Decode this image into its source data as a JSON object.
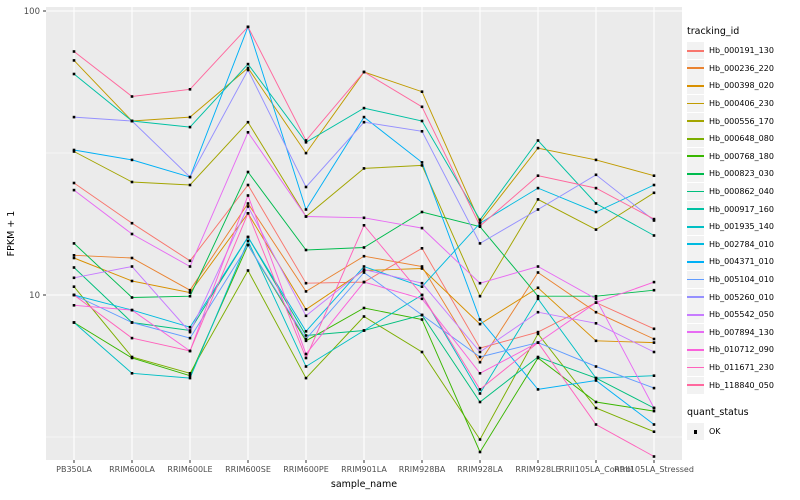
{
  "figure": {
    "kind": "ggplot-line-chart",
    "panel_bg": "#EBEBEB",
    "grid_color": "#FFFFFF",
    "tick_text_color": "#4D4D4D",
    "axis_title_color": "#000000",
    "legend_key_bg": "#F2F2F2",
    "point_color": "#000000"
  },
  "axes": {
    "y_label": "FPKM + 1",
    "x_label": "sample_name",
    "y_ticks": [
      "100",
      "10"
    ],
    "y_minor_gridlines": [
      31.62,
      3.162
    ],
    "y_major_gridlines": [
      100,
      10
    ]
  },
  "legend": {
    "color_title": "tracking_id",
    "shape_title": "quant_status",
    "shape_items": [
      {
        "label": "OK",
        "shape": "filled-square",
        "color": "#000000"
      }
    ]
  },
  "chart_data": {
    "type": "line",
    "title": "",
    "xlabel": "sample_name",
    "ylabel": "FPKM + 1",
    "yscale": "log10",
    "ylim": [
      2.6,
      101
    ],
    "grid": true,
    "legend_position": "right",
    "point_shape": "filled-square",
    "point_color": "#000000",
    "quant_status": "OK",
    "x": [
      "PB350LA",
      "RRIM600LA",
      "RRIM600LE",
      "RRIM600SE",
      "RRIM600PE",
      "RRIM901LA",
      "RRIM928BA",
      "RRIM928LA",
      "RRIM928LE",
      "RRII105LA_Control",
      "RRII105LA_Stressed"
    ],
    "series": [
      {
        "name": "Hb_000191_130",
        "color": "#F8766D",
        "values": [
          24.8,
          17.9,
          13.2,
          24.4,
          11.0,
          11.1,
          14.6,
          6.5,
          7.4,
          9.4,
          7.6
        ]
      },
      {
        "name": "Hb_000236_220",
        "color": "#EA8331",
        "values": [
          13.8,
          13.5,
          10.4,
          21.0,
          10.3,
          13.7,
          12.6,
          5.8,
          12.0,
          8.7,
          7.0
        ]
      },
      {
        "name": "Hb_000398_020",
        "color": "#D89000",
        "values": [
          13.5,
          11.2,
          10.2,
          19.4,
          8.9,
          12.2,
          12.4,
          7.9,
          10.6,
          6.9,
          6.8
        ]
      },
      {
        "name": "Hb_000406_230",
        "color": "#C09B00",
        "values": [
          67.0,
          41.0,
          42.3,
          63.0,
          31.6,
          61.0,
          52.0,
          18.0,
          32.9,
          29.9,
          26.3
        ]
      },
      {
        "name": "Hb_000556_170",
        "color": "#A3A500",
        "values": [
          32.0,
          25.0,
          24.4,
          40.6,
          18.9,
          27.9,
          28.6,
          9.9,
          21.7,
          17.0,
          22.9
        ]
      },
      {
        "name": "Hb_000648_080",
        "color": "#7CAE00",
        "values": [
          10.7,
          6.05,
          5.3,
          12.2,
          5.1,
          8.4,
          6.3,
          3.1,
          7.3,
          4.0,
          3.3
        ]
      },
      {
        "name": "Hb_000768_180",
        "color": "#39B600",
        "values": [
          8.0,
          6.0,
          5.2,
          15.0,
          6.9,
          9.0,
          8.2,
          2.8,
          6.0,
          4.2,
          3.9
        ]
      },
      {
        "name": "Hb_000823_030",
        "color": "#00BB4E",
        "values": [
          15.2,
          9.8,
          9.9,
          27.1,
          14.4,
          14.7,
          19.6,
          17.4,
          9.9,
          9.9,
          10.4
        ]
      },
      {
        "name": "Hb_000862_040",
        "color": "#00BF7D",
        "values": [
          12.5,
          8.0,
          7.5,
          16.0,
          7.2,
          7.5,
          8.5,
          4.2,
          6.05,
          5.1,
          4.0
        ]
      },
      {
        "name": "Hb_000917_160",
        "color": "#00C1A3",
        "values": [
          60.0,
          41.0,
          39.0,
          65.0,
          34.5,
          45.5,
          41.0,
          18.4,
          35.0,
          21.0,
          16.2
        ]
      },
      {
        "name": "Hb_001935_140",
        "color": "#00BFC4",
        "values": [
          8.0,
          5.3,
          5.1,
          15.5,
          5.6,
          7.5,
          10.0,
          4.5,
          9.7,
          5.1,
          5.2
        ]
      },
      {
        "name": "Hb_002784_010",
        "color": "#00BAE0",
        "values": [
          10.0,
          8.85,
          7.7,
          16.0,
          7.45,
          12.6,
          10.7,
          17.9,
          23.8,
          19.6,
          24.4
        ]
      },
      {
        "name": "Hb_004371_010",
        "color": "#00B0F6",
        "values": [
          32.4,
          29.9,
          26.0,
          88.0,
          20.0,
          42.3,
          29.3,
          8.2,
          4.65,
          5.0,
          3.5
        ]
      },
      {
        "name": "Hb_005104_010",
        "color": "#619CFF",
        "values": [
          10.0,
          8.0,
          7.05,
          15.0,
          7.0,
          12.0,
          8.5,
          6.05,
          6.8,
          5.6,
          4.7
        ]
      },
      {
        "name": "Hb_005260_010",
        "color": "#9590FF",
        "values": [
          42.3,
          41.0,
          26.0,
          62.0,
          24.0,
          40.6,
          37.7,
          15.2,
          20.0,
          26.5,
          18.3
        ]
      },
      {
        "name": "Hb_005542_050",
        "color": "#C77CFF",
        "values": [
          11.5,
          12.6,
          7.4,
          20.5,
          8.45,
          12.3,
          11.0,
          6.3,
          8.7,
          7.95,
          6.3
        ]
      },
      {
        "name": "Hb_007894_130",
        "color": "#E76BF3",
        "values": [
          23.4,
          16.4,
          12.6,
          37.4,
          18.9,
          18.7,
          17.2,
          11.0,
          12.6,
          9.7,
          4.0
        ]
      },
      {
        "name": "Hb_010712_090",
        "color": "#FA62DB",
        "values": [
          9.2,
          8.85,
          6.35,
          22.4,
          6.2,
          11.1,
          9.7,
          5.3,
          6.8,
          9.4,
          11.1
        ]
      },
      {
        "name": "Hb_011671_230",
        "color": "#FF62BC",
        "values": [
          10.0,
          7.05,
          6.35,
          19.4,
          6.0,
          17.6,
          10.0,
          4.65,
          6.8,
          3.5,
          2.7
        ]
      },
      {
        "name": "Hb_118840_050",
        "color": "#FF689E",
        "values": [
          72.0,
          50.0,
          53.0,
          88.0,
          35.0,
          61.0,
          46.0,
          17.5,
          26.3,
          23.8,
          18.5
        ]
      }
    ]
  }
}
